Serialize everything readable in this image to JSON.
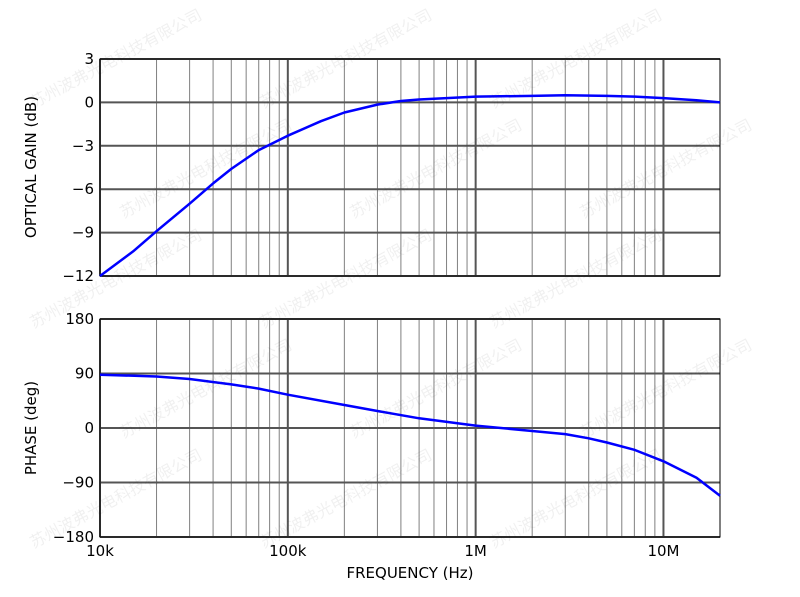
{
  "watermark": "苏州波弗光电科技有限公司",
  "chart_data": [
    {
      "type": "line",
      "xscale": "log",
      "xlim": [
        10000,
        20000000
      ],
      "ylim": [
        -12,
        3
      ],
      "yticks": [
        "3",
        "0",
        "−3",
        "−6",
        "−9",
        "−12"
      ],
      "ytick_values": [
        3,
        0,
        -3,
        -6,
        -9,
        -12
      ],
      "ylabel": "OPTICAL GAIN (dB)",
      "grid": true,
      "line_color": "#0000ff",
      "x": [
        10000,
        15000,
        20000,
        30000,
        40000,
        50000,
        70000,
        100000,
        150000,
        200000,
        300000,
        400000,
        500000,
        700000,
        1000000,
        2000000,
        3000000,
        5000000,
        7000000,
        10000000,
        15000000,
        20000000
      ],
      "y": [
        -12,
        -10.3,
        -8.9,
        -7,
        -5.6,
        -4.6,
        -3.3,
        -2.3,
        -1.3,
        -0.7,
        -0.15,
        0.1,
        0.2,
        0.3,
        0.4,
        0.45,
        0.5,
        0.45,
        0.4,
        0.3,
        0.15,
        0
      ]
    },
    {
      "type": "line",
      "xscale": "log",
      "xlim": [
        10000,
        20000000
      ],
      "ylim": [
        -180,
        180
      ],
      "yticks": [
        "180",
        "90",
        "0",
        "−90",
        "−180"
      ],
      "ytick_values": [
        180,
        90,
        0,
        -90,
        -180
      ],
      "ylabel": "PHASE (deg)",
      "xlabel": "FREQUENCY (Hz)",
      "xticks": [
        "10k",
        "100k",
        "1M",
        "10M"
      ],
      "xtick_values": [
        10000,
        100000,
        1000000,
        10000000
      ],
      "grid": true,
      "line_color": "#0000ff",
      "x": [
        10000,
        20000,
        30000,
        50000,
        70000,
        100000,
        200000,
        300000,
        500000,
        1000000,
        2000000,
        3000000,
        4000000,
        5000000,
        7000000,
        10000000,
        15000000,
        20000000
      ],
      "y": [
        88,
        85,
        81,
        72,
        65,
        55,
        38,
        28,
        16,
        4,
        -5,
        -10,
        -17,
        -24,
        -36,
        -55,
        -82,
        -112
      ]
    }
  ]
}
